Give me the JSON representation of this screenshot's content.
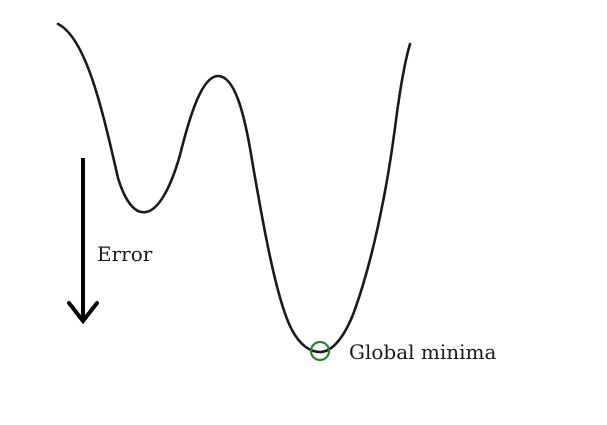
{
  "diagram": {
    "error_label": "Error",
    "global_minima_label": "Global minima"
  },
  "colors": {
    "curve": "#1a1a1a",
    "arrow": "#000000",
    "marker": "#2e7d32",
    "background": "#ffffff"
  },
  "icons": {
    "direction": "arrow-down-icon",
    "marker": "circle-marker-icon"
  }
}
